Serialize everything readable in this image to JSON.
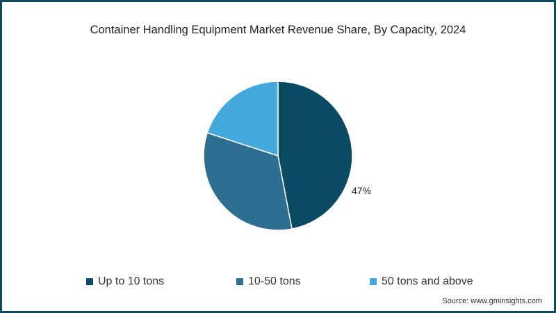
{
  "title": "Container Handling Equipment Market Revenue Share, By Capacity, 2024",
  "source": "Source: www.gminsights.com",
  "colors": {
    "border": "#0d4a60",
    "up_to_10": "#0b4a63",
    "10_50": "#2e6f91",
    "50_above": "#45a8dc"
  },
  "chart_data": {
    "type": "pie",
    "title": "Container Handling Equipment Market Revenue Share, By Capacity, 2024",
    "categories": [
      "Up to 10 tons",
      "10-50 tons",
      "50 tons and above"
    ],
    "values": [
      47,
      33,
      20
    ],
    "unit": "%",
    "data_labels": [
      {
        "category": "Up to 10 tons",
        "label": "47%"
      }
    ],
    "legend_position": "bottom",
    "colors": [
      "#0b4a63",
      "#2e6f91",
      "#45a8dc"
    ],
    "start_angle": "12 o'clock, clockwise"
  },
  "pie_label": "47%",
  "legend": [
    {
      "label": "Up to 10 tons",
      "color": "#0b4a63"
    },
    {
      "label": "10-50 tons",
      "color": "#2e6f91"
    },
    {
      "label": "50 tons and above",
      "color": "#45a8dc"
    }
  ]
}
